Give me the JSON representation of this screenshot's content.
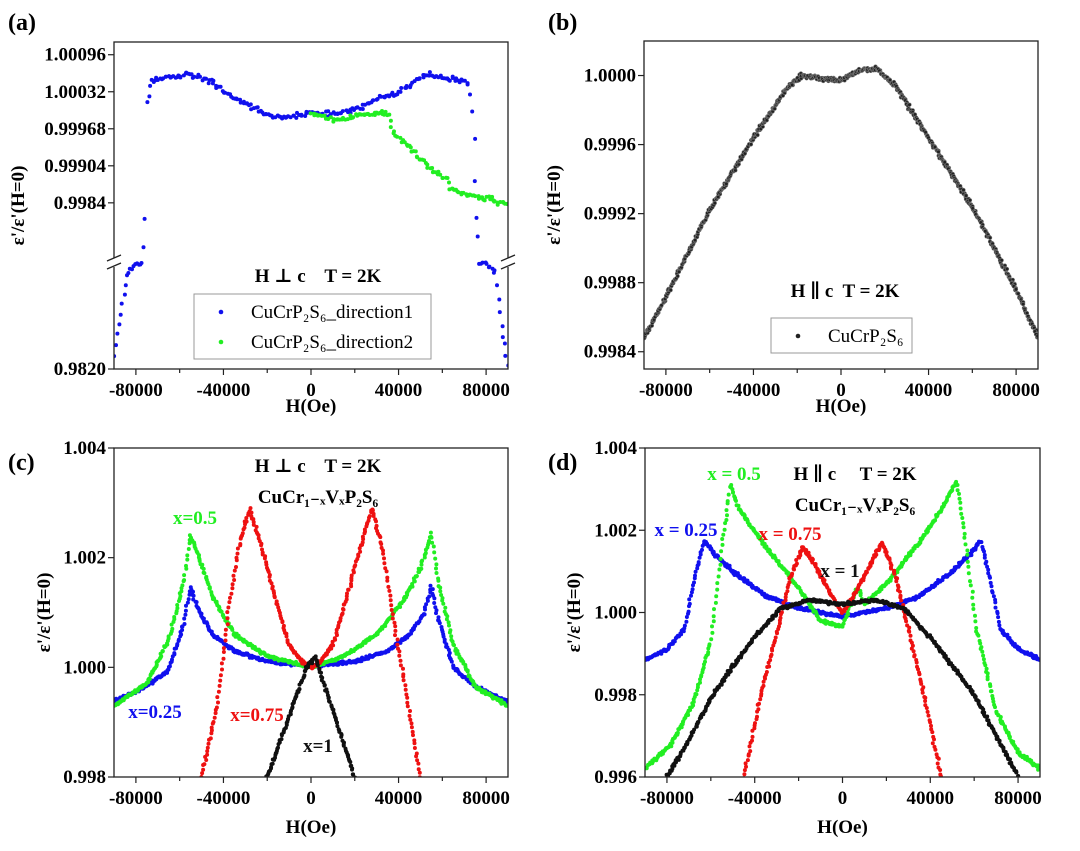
{
  "chart_data": [
    {
      "panel_label": "(a)",
      "type": "scatter",
      "xlabel": "H(Oe)",
      "ylabel": "ε'/ε'(H=0)",
      "xlim": [
        -90000,
        90000
      ],
      "ylim": [
        0.982,
        1.00118
      ],
      "y_axis_break": [
        0.9845,
        0.99736
      ],
      "xticks": [
        "-80000",
        "-40000",
        "0",
        "40000",
        "80000"
      ],
      "yticks": [
        "1.00096",
        "1.00032",
        "0.99968",
        "0.99904",
        "0.9984",
        "0.9820"
      ],
      "annotation": "H ⊥ c    T = 2K",
      "legend_position": "bottom-center",
      "series": [
        {
          "name": "CuCrP₂S₆_direction1",
          "color": "#1010ee",
          "points": [
            [
              -90000,
              0.98235
            ],
            [
              -86000,
              0.9836
            ],
            [
              -84000,
              0.9842
            ],
            [
              -80000,
              0.9845
            ],
            [
              -76500,
              0.9976
            ],
            [
              -75500,
              0.9983
            ],
            [
              -75000,
              1.0001
            ],
            [
              -73000,
              1.0005
            ],
            [
              -65000,
              1.00058
            ],
            [
              -55000,
              1.00062
            ],
            [
              -45000,
              1.00048
            ],
            [
              -35000,
              1.0002
            ],
            [
              -20000,
              0.99994
            ],
            [
              -10000,
              0.99988
            ],
            [
              0,
              0.99995
            ],
            [
              10000,
              0.99992
            ],
            [
              20000,
              1.0
            ],
            [
              30000,
              1.0002
            ],
            [
              40000,
              1.0003
            ],
            [
              52000,
              1.00062
            ],
            [
              62000,
              1.00055
            ],
            [
              72000,
              1.00048
            ],
            [
              73000,
              1.0002
            ],
            [
              74000,
              0.9997
            ],
            [
              75500,
              0.9982
            ],
            [
              77000,
              0.9976
            ],
            [
              79000,
              0.9845
            ],
            [
              84000,
              0.9843
            ],
            [
              87000,
              0.983
            ],
            [
              90000,
              0.9821
            ]
          ]
        },
        {
          "name": "CuCrP₂S₆_direction2",
          "color": "#22ee22",
          "points": [
            [
              0,
              0.99995
            ],
            [
              5000,
              0.9999
            ],
            [
              10000,
              0.99982
            ],
            [
              20000,
              0.9999
            ],
            [
              30000,
              0.99995
            ],
            [
              35000,
              0.99995
            ],
            [
              38000,
              0.9996
            ],
            [
              45000,
              0.99935
            ],
            [
              55000,
              0.99898
            ],
            [
              62500,
              0.99882
            ],
            [
              63500,
              0.99862
            ],
            [
              75000,
              0.99852
            ],
            [
              90000,
              0.99838
            ]
          ]
        }
      ]
    },
    {
      "panel_label": "(b)",
      "type": "scatter",
      "xlabel": "H(Oe)",
      "ylabel": "ε'/ε'(H=0)",
      "xlim": [
        -90000,
        90000
      ],
      "ylim": [
        0.9983,
        1.0002
      ],
      "xticks": [
        "-80000",
        "-40000",
        "0",
        "40000",
        "80000"
      ],
      "yticks": [
        "1.0000",
        "0.9996",
        "0.9992",
        "0.9988",
        "0.9984"
      ],
      "annotation": "H ∥ c  T = 2K",
      "legend_position": "bottom-center",
      "series": [
        {
          "name": "CuCrP₂S₆",
          "color": "#222222",
          "points": [
            [
              -90000,
              0.99848
            ],
            [
              -80000,
              0.99872
            ],
            [
              -60000,
              0.99922
            ],
            [
              -40000,
              0.99964
            ],
            [
              -25000,
              0.99992
            ],
            [
              -18000,
              1.0
            ],
            [
              -8000,
              0.99998
            ],
            [
              0,
              0.99997
            ],
            [
              8000,
              1.00003
            ],
            [
              16000,
              1.00004
            ],
            [
              25000,
              0.99994
            ],
            [
              40000,
              0.99964
            ],
            [
              60000,
              0.99924
            ],
            [
              80000,
              0.99876
            ],
            [
              90000,
              0.99848
            ]
          ]
        }
      ]
    },
    {
      "panel_label": "(c)",
      "type": "scatter",
      "xlabel": "H(Oe)",
      "ylabel": "ε'/ε'(H=0)",
      "xlim": [
        -90000,
        90000
      ],
      "ylim": [
        0.998,
        1.004
      ],
      "xticks": [
        "-80000",
        "-40000",
        "0",
        "40000",
        "80000"
      ],
      "yticks": [
        "1.004",
        "1.002",
        "1.000",
        "0.998"
      ],
      "annotation": "H ⊥ c    T = 2K",
      "annotation2": "CuCr₁₋ₓVₓP₂S₆",
      "series": [
        {
          "name": "x=0.25",
          "color": "#1010ee",
          "points": [
            [
              -90000,
              0.99937
            ],
            [
              -75000,
              0.99965
            ],
            [
              -65000,
              0.99995
            ],
            [
              -58000,
              1.0008
            ],
            [
              -55000,
              1.00145
            ],
            [
              -52000,
              1.0011
            ],
            [
              -45000,
              1.0006
            ],
            [
              -35000,
              1.0003
            ],
            [
              -20000,
              1.0001
            ],
            [
              0,
              1.00003
            ],
            [
              20000,
              1.0001
            ],
            [
              35000,
              1.0003
            ],
            [
              45000,
              1.0006
            ],
            [
              52000,
              1.001
            ],
            [
              55000,
              1.00148
            ],
            [
              58000,
              1.0009
            ],
            [
              65000,
              1.0
            ],
            [
              75000,
              0.99965
            ],
            [
              90000,
              0.99937
            ]
          ]
        },
        {
          "name": "x=0.5",
          "color": "#22ee22",
          "points": [
            [
              -90000,
              0.9993
            ],
            [
              -75000,
              0.9997
            ],
            [
              -65000,
              1.0005
            ],
            [
              -58000,
              1.0016
            ],
            [
              -55000,
              1.0024
            ],
            [
              -52000,
              1.0021
            ],
            [
              -45000,
              1.0013
            ],
            [
              -35000,
              1.0006
            ],
            [
              -20000,
              1.0002
            ],
            [
              0,
              1.0
            ],
            [
              15000,
              1.0002
            ],
            [
              30000,
              1.0006
            ],
            [
              42000,
              1.0012
            ],
            [
              50000,
              1.0018
            ],
            [
              55000,
              1.00245
            ],
            [
              58000,
              1.0016
            ],
            [
              65000,
              1.0004
            ],
            [
              75000,
              0.99965
            ],
            [
              90000,
              0.9993
            ]
          ]
        },
        {
          "name": "x=0.75",
          "color": "#ee1111",
          "points": [
            [
              -50000,
              0.998
            ],
            [
              -43000,
              0.9993
            ],
            [
              -37000,
              1.0012
            ],
            [
              -33000,
              1.0022
            ],
            [
              -28000,
              1.0029
            ],
            [
              -24000,
              1.0024
            ],
            [
              -18000,
              1.0015
            ],
            [
              -10000,
              1.0004
            ],
            [
              -4000,
              1.0001
            ],
            [
              0,
              1.0
            ],
            [
              4000,
              1.0001
            ],
            [
              10000,
              1.0004
            ],
            [
              18000,
              1.0015
            ],
            [
              24000,
              1.0024
            ],
            [
              28000,
              1.0029
            ],
            [
              33000,
              1.0021
            ],
            [
              38000,
              1.0008
            ],
            [
              44000,
              0.9994
            ],
            [
              50000,
              0.998
            ]
          ]
        },
        {
          "name": "x=1",
          "color": "#111111",
          "points": [
            [
              -20000,
              0.998
            ],
            [
              -10000,
              0.9991
            ],
            [
              -2000,
              1.0
            ],
            [
              2000,
              1.0002
            ],
            [
              10000,
              0.9992
            ],
            [
              20000,
              0.998
            ]
          ]
        }
      ]
    },
    {
      "panel_label": "(d)",
      "type": "scatter",
      "xlabel": "H(Oe)",
      "ylabel": "ε'/ε'(H=0)",
      "xlim": [
        -90000,
        90000
      ],
      "ylim": [
        0.996,
        1.004
      ],
      "xticks": [
        "-80000",
        "-40000",
        "0",
        "40000",
        "80000"
      ],
      "yticks": [
        "1.004",
        "1.002",
        "1.000",
        "0.998",
        "0.996"
      ],
      "annotation": "H ∥ c     T = 2K",
      "annotation2": "CuCr₁₋ₓVₓP₂S₆",
      "series": [
        {
          "name": "x = 0.25",
          "color": "#1010ee",
          "points": [
            [
              -90000,
              0.99885
            ],
            [
              -80000,
              0.9991
            ],
            [
              -72000,
              0.9996
            ],
            [
              -67000,
              1.0009
            ],
            [
              -63000,
              1.00175
            ],
            [
              -58000,
              1.0014
            ],
            [
              -50000,
              1.001
            ],
            [
              -35000,
              1.0004
            ],
            [
              -20000,
              1.0001
            ],
            [
              0,
              0.9999
            ],
            [
              20000,
              1.0001
            ],
            [
              35000,
              1.0004
            ],
            [
              50000,
              1.001
            ],
            [
              58000,
              1.0014
            ],
            [
              63000,
              1.00175
            ],
            [
              67000,
              1.0009
            ],
            [
              72000,
              0.9996
            ],
            [
              80000,
              0.9991
            ],
            [
              90000,
              0.99885
            ]
          ]
        },
        {
          "name": "x = 0.5",
          "color": "#22ee22",
          "points": [
            [
              -90000,
              0.9962
            ],
            [
              -78000,
              0.9968
            ],
            [
              -68000,
              0.9978
            ],
            [
              -60000,
              0.9993
            ],
            [
              -55000,
              1.0016
            ],
            [
              -51000,
              1.0031
            ],
            [
              -47000,
              1.0025
            ],
            [
              -35000,
              1.0016
            ],
            [
              -20000,
              1.0006
            ],
            [
              -10000,
              0.9998
            ],
            [
              0,
              0.99965
            ],
            [
              3000,
              1.0001
            ],
            [
              7000,
              1.0006
            ],
            [
              10000,
              1.0002
            ],
            [
              20000,
              1.0007
            ],
            [
              35000,
              1.0017
            ],
            [
              45000,
              1.0025
            ],
            [
              52000,
              1.0032
            ],
            [
              56000,
              1.0018
            ],
            [
              61000,
              0.9996
            ],
            [
              70000,
              0.9976
            ],
            [
              80000,
              0.9966
            ],
            [
              90000,
              0.9962
            ]
          ]
        },
        {
          "name": "x = 0.75",
          "color": "#ee1111",
          "points": [
            [
              -45000,
              0.996
            ],
            [
              -38000,
              0.9978
            ],
            [
              -30000,
              0.9995
            ],
            [
              -24000,
              1.0008
            ],
            [
              -18000,
              1.0016
            ],
            [
              -12000,
              1.0011
            ],
            [
              -5000,
              1.0004
            ],
            [
              0,
              1.0
            ],
            [
              5000,
              1.0004
            ],
            [
              12000,
              1.0011
            ],
            [
              18000,
              1.0017
            ],
            [
              24000,
              1.0009
            ],
            [
              30000,
              0.9996
            ],
            [
              38000,
              0.9978
            ],
            [
              45000,
              0.996
            ]
          ]
        },
        {
          "name": "x = 1",
          "color": "#111111",
          "points": [
            [
              -80000,
              0.996
            ],
            [
              -70000,
              0.9969
            ],
            [
              -60000,
              0.9979
            ],
            [
              -50000,
              0.9987
            ],
            [
              -40000,
              0.9994
            ],
            [
              -28000,
              1.0001
            ],
            [
              -15000,
              1.0003
            ],
            [
              0,
              1.0002
            ],
            [
              15000,
              1.0003
            ],
            [
              28000,
              1.0001
            ],
            [
              40000,
              0.9994
            ],
            [
              50000,
              0.9987
            ],
            [
              60000,
              0.998
            ],
            [
              70000,
              0.997
            ],
            [
              80000,
              0.996
            ]
          ]
        }
      ]
    }
  ]
}
